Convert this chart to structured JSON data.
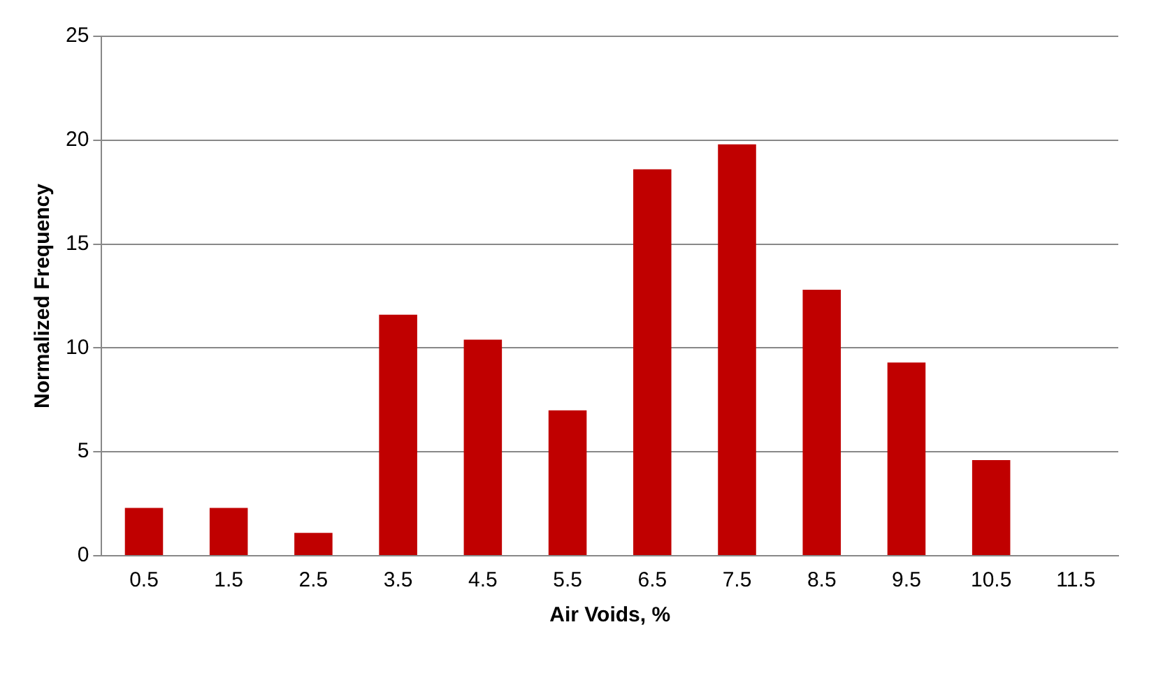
{
  "chart_data": {
    "type": "bar",
    "xlabel": "Air Voids, %",
    "ylabel": "Normalized Frequency",
    "categories": [
      "0.5",
      "1.5",
      "2.5",
      "3.5",
      "4.5",
      "5.5",
      "6.5",
      "7.5",
      "8.5",
      "9.5",
      "10.5",
      "11.5"
    ],
    "values": [
      2.3,
      2.3,
      1.1,
      11.6,
      10.4,
      7.0,
      18.6,
      19.8,
      12.8,
      9.3,
      4.6,
      0
    ],
    "color": "#c00000",
    "ylim": [
      0,
      25
    ],
    "yticks": [
      0,
      5,
      10,
      15,
      20,
      25
    ],
    "grid": "y",
    "legend": false
  }
}
